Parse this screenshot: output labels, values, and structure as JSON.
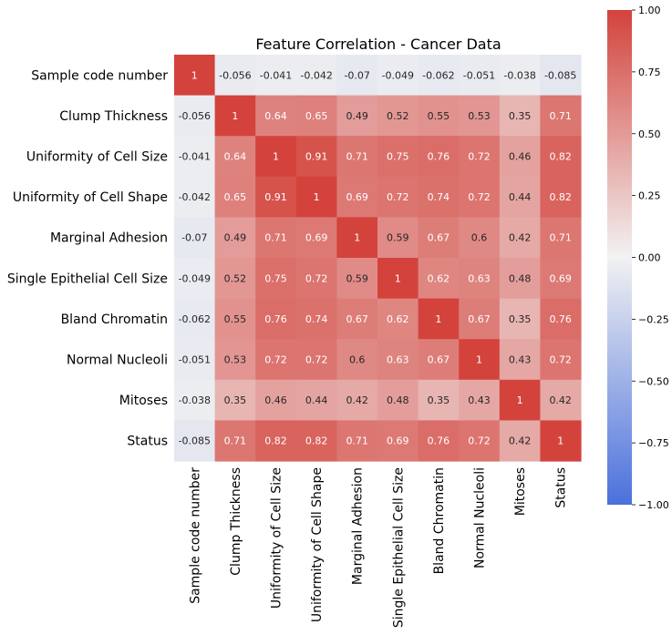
{
  "chart_data": {
    "type": "heatmap",
    "title": "Feature Correlation - Cancer Data",
    "labels": [
      "Sample code number",
      "Clump Thickness",
      "Uniformity of Cell Size",
      "Uniformity of Cell Shape",
      "Marginal Adhesion",
      "Single Epithelial Cell Size",
      "Bland Chromatin",
      "Normal Nucleoli",
      "Mitoses",
      "Status"
    ],
    "matrix": [
      [
        1,
        -0.056,
        -0.041,
        -0.042,
        -0.07,
        -0.049,
        -0.062,
        -0.051,
        -0.038,
        -0.085
      ],
      [
        -0.056,
        1,
        0.64,
        0.65,
        0.49,
        0.52,
        0.55,
        0.53,
        0.35,
        0.71
      ],
      [
        -0.041,
        0.64,
        1,
        0.91,
        0.71,
        0.75,
        0.76,
        0.72,
        0.46,
        0.82
      ],
      [
        -0.042,
        0.65,
        0.91,
        1,
        0.69,
        0.72,
        0.74,
        0.72,
        0.44,
        0.82
      ],
      [
        -0.07,
        0.49,
        0.71,
        0.69,
        1,
        0.59,
        0.67,
        0.6,
        0.42,
        0.71
      ],
      [
        -0.049,
        0.52,
        0.75,
        0.72,
        0.59,
        1,
        0.62,
        0.63,
        0.48,
        0.69
      ],
      [
        -0.062,
        0.55,
        0.76,
        0.74,
        0.67,
        0.62,
        1,
        0.67,
        0.35,
        0.76
      ],
      [
        -0.051,
        0.53,
        0.72,
        0.72,
        0.6,
        0.63,
        0.67,
        1,
        0.43,
        0.72
      ],
      [
        -0.038,
        0.35,
        0.46,
        0.44,
        0.42,
        0.48,
        0.35,
        0.43,
        1,
        0.42
      ],
      [
        -0.085,
        0.71,
        0.82,
        0.82,
        0.71,
        0.69,
        0.76,
        0.72,
        0.42,
        1
      ]
    ],
    "annotations": [
      [
        "1",
        "-0.056",
        "-0.041",
        "-0.042",
        "-0.07",
        "-0.049",
        "-0.062",
        "-0.051",
        "-0.038",
        "-0.085"
      ],
      [
        "-0.056",
        "1",
        "0.64",
        "0.65",
        "0.49",
        "0.52",
        "0.55",
        "0.53",
        "0.35",
        "0.71"
      ],
      [
        "-0.041",
        "0.64",
        "1",
        "0.91",
        "0.71",
        "0.75",
        "0.76",
        "0.72",
        "0.46",
        "0.82"
      ],
      [
        "-0.042",
        "0.65",
        "0.91",
        "1",
        "0.69",
        "0.72",
        "0.74",
        "0.72",
        "0.44",
        "0.82"
      ],
      [
        "-0.07",
        "0.49",
        "0.71",
        "0.69",
        "1",
        "0.59",
        "0.67",
        "0.6",
        "0.42",
        "0.71"
      ],
      [
        "-0.049",
        "0.52",
        "0.75",
        "0.72",
        "0.59",
        "1",
        "0.62",
        "0.63",
        "0.48",
        "0.69"
      ],
      [
        "-0.062",
        "0.55",
        "0.76",
        "0.74",
        "0.67",
        "0.62",
        "1",
        "0.67",
        "0.35",
        "0.76"
      ],
      [
        "-0.051",
        "0.53",
        "0.72",
        "0.72",
        "0.6",
        "0.63",
        "0.67",
        "1",
        "0.43",
        "0.72"
      ],
      [
        "-0.038",
        "0.35",
        "0.46",
        "0.44",
        "0.42",
        "0.48",
        "0.35",
        "0.43",
        "1",
        "0.42"
      ],
      [
        "-0.085",
        "0.71",
        "0.82",
        "0.82",
        "0.71",
        "0.69",
        "0.76",
        "0.72",
        "0.42",
        "1"
      ]
    ],
    "colorbar": {
      "vmin": -1.0,
      "vmax": 1.0,
      "ticks": [
        1.0,
        0.75,
        0.5,
        0.25,
        0.0,
        -0.25,
        -0.5,
        -0.75,
        -1.0
      ],
      "tick_labels": [
        "1.00",
        "0.75",
        "0.50",
        "0.25",
        "0.00",
        "−0.25",
        "−0.50",
        "−0.75",
        "−1.00"
      ],
      "colormap": "diverging blue-white-red",
      "color_low": "#4a70dc",
      "color_mid": "#f2f2f2",
      "color_high": "#d3433c"
    },
    "grid": false,
    "legend": "colorbar right"
  }
}
